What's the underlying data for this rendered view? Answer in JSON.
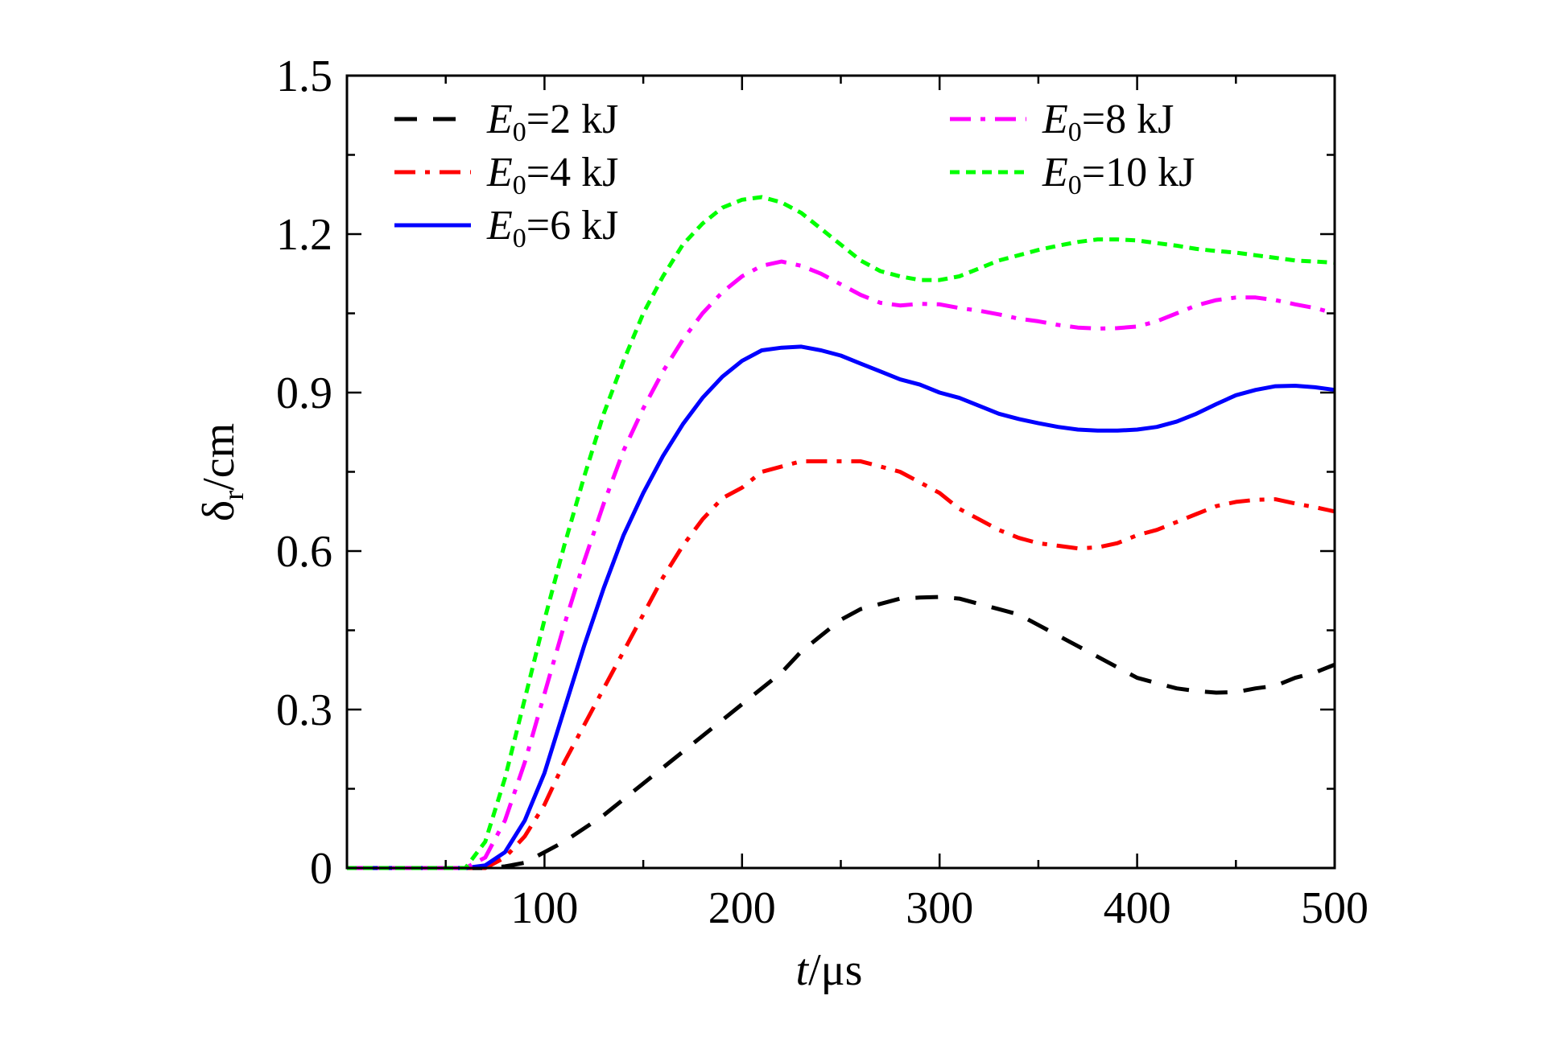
{
  "chart_data": {
    "type": "line",
    "xlabel": {
      "italic": "t",
      "rest": "/μs"
    },
    "ylabel": {
      "main": "δ",
      "sub": "r",
      "rest": "/cm"
    },
    "xlim": [
      0,
      500
    ],
    "ylim": [
      0,
      1.5
    ],
    "x_ticks": [
      100,
      200,
      300,
      400,
      500
    ],
    "x_tick_labels": [
      "100",
      "200",
      "300",
      "400",
      "500"
    ],
    "y_ticks": [
      0,
      0.3,
      0.6,
      0.9,
      1.2,
      1.5
    ],
    "y_tick_labels": [
      "0",
      "0.3",
      "0.6",
      "0.9",
      "1.2",
      "1.5"
    ],
    "grid": false,
    "legend_position": "top",
    "x": [
      0,
      10,
      20,
      30,
      40,
      50,
      60,
      70,
      80,
      90,
      100,
      110,
      120,
      130,
      140,
      150,
      160,
      170,
      180,
      190,
      200,
      210,
      220,
      230,
      240,
      250,
      260,
      270,
      280,
      290,
      300,
      310,
      320,
      330,
      340,
      350,
      360,
      370,
      380,
      390,
      400,
      410,
      420,
      430,
      440,
      450,
      460,
      470,
      480,
      490,
      500
    ],
    "series": [
      {
        "name_prefix": "E",
        "name_sub": "0",
        "name_suffix": "=2 kJ",
        "color": "#000000",
        "dash": "dashed",
        "values": [
          0,
          0,
          0,
          0,
          0,
          0,
          0,
          0,
          0.003,
          0.01,
          0.03,
          0.05,
          0.075,
          0.1,
          0.13,
          0.16,
          0.19,
          0.22,
          0.25,
          0.28,
          0.31,
          0.34,
          0.37,
          0.41,
          0.44,
          0.47,
          0.49,
          0.5,
          0.51,
          0.512,
          0.513,
          0.51,
          0.5,
          0.49,
          0.48,
          0.46,
          0.44,
          0.42,
          0.4,
          0.38,
          0.36,
          0.35,
          0.34,
          0.335,
          0.332,
          0.333,
          0.34,
          0.345,
          0.36,
          0.37,
          0.385
        ]
      },
      {
        "name_prefix": "E",
        "name_sub": "0",
        "name_suffix": "=4 kJ",
        "color": "#ff0000",
        "dash": "dashdot",
        "values": [
          0,
          0,
          0,
          0,
          0,
          0,
          0,
          0,
          0.02,
          0.06,
          0.12,
          0.2,
          0.27,
          0.34,
          0.41,
          0.48,
          0.55,
          0.61,
          0.66,
          0.7,
          0.72,
          0.75,
          0.76,
          0.77,
          0.77,
          0.77,
          0.77,
          0.76,
          0.75,
          0.73,
          0.71,
          0.68,
          0.66,
          0.64,
          0.625,
          0.615,
          0.61,
          0.605,
          0.607,
          0.615,
          0.63,
          0.64,
          0.655,
          0.67,
          0.685,
          0.693,
          0.697,
          0.698,
          0.69,
          0.683,
          0.675
        ]
      },
      {
        "name_prefix": "E",
        "name_sub": "0",
        "name_suffix": "=6 kJ",
        "color": "#0000ff",
        "dash": "solid",
        "values": [
          0,
          0,
          0,
          0,
          0,
          0,
          0,
          0.005,
          0.03,
          0.09,
          0.18,
          0.3,
          0.42,
          0.53,
          0.63,
          0.71,
          0.78,
          0.84,
          0.89,
          0.93,
          0.96,
          0.98,
          0.985,
          0.987,
          0.98,
          0.97,
          0.955,
          0.94,
          0.925,
          0.915,
          0.9,
          0.89,
          0.875,
          0.86,
          0.85,
          0.842,
          0.835,
          0.83,
          0.828,
          0.828,
          0.83,
          0.835,
          0.845,
          0.86,
          0.878,
          0.895,
          0.905,
          0.912,
          0.913,
          0.91,
          0.905
        ]
      },
      {
        "name_prefix": "E",
        "name_sub": "0",
        "name_suffix": "=8 kJ",
        "color": "#ff00ff",
        "dash": "dashdot",
        "values": [
          0,
          0,
          0,
          0,
          0,
          0,
          0,
          0.02,
          0.09,
          0.2,
          0.33,
          0.46,
          0.58,
          0.69,
          0.79,
          0.87,
          0.94,
          1.0,
          1.05,
          1.09,
          1.12,
          1.14,
          1.148,
          1.14,
          1.125,
          1.105,
          1.085,
          1.07,
          1.065,
          1.068,
          1.067,
          1.06,
          1.055,
          1.048,
          1.04,
          1.035,
          1.028,
          1.023,
          1.021,
          1.022,
          1.025,
          1.035,
          1.05,
          1.065,
          1.075,
          1.08,
          1.08,
          1.075,
          1.067,
          1.06,
          1.05
        ]
      },
      {
        "name_prefix": "E",
        "name_sub": "0",
        "name_suffix": "=10 kJ",
        "color": "#00ff00",
        "dash": "short-dashed",
        "values": [
          0,
          0,
          0,
          0,
          0,
          0,
          0,
          0.05,
          0.17,
          0.32,
          0.47,
          0.61,
          0.74,
          0.86,
          0.96,
          1.05,
          1.12,
          1.18,
          1.22,
          1.25,
          1.265,
          1.27,
          1.26,
          1.24,
          1.21,
          1.18,
          1.15,
          1.13,
          1.12,
          1.113,
          1.113,
          1.12,
          1.135,
          1.15,
          1.16,
          1.17,
          1.178,
          1.185,
          1.19,
          1.19,
          1.188,
          1.183,
          1.178,
          1.172,
          1.168,
          1.165,
          1.16,
          1.155,
          1.15,
          1.148,
          1.146
        ]
      }
    ]
  }
}
